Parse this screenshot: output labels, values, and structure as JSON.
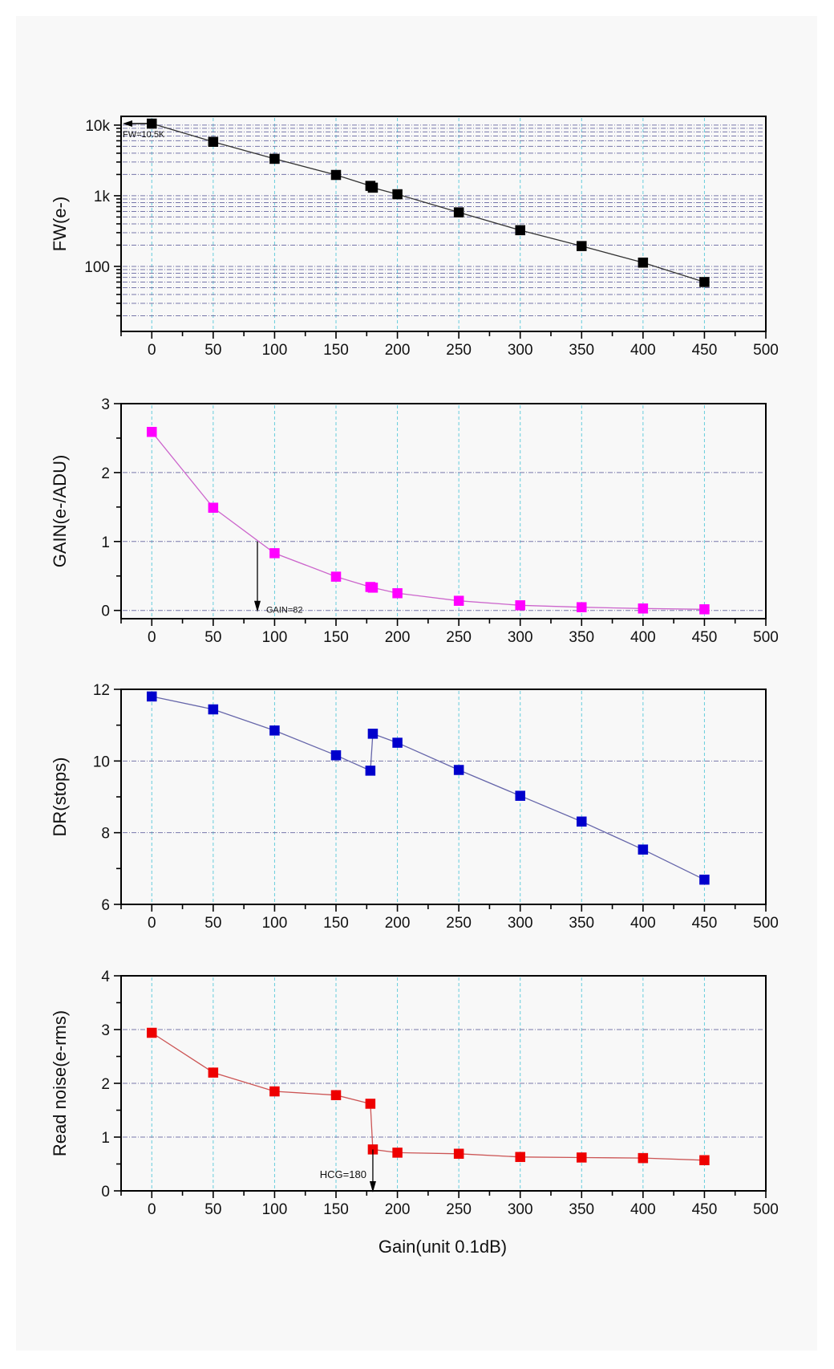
{
  "chart_data": [
    {
      "type": "line",
      "scale": "log",
      "ylabel": "FW(e-)",
      "xlim": [
        -25,
        500
      ],
      "ylim": [
        12,
        13300
      ],
      "xticks": [
        "0",
        "50",
        "100",
        "150",
        "200",
        "250",
        "300",
        "350",
        "400",
        "450",
        "500"
      ],
      "yticks": [
        {
          "v": 100,
          "label": "100"
        },
        {
          "v": 1000,
          "label": "1k"
        },
        {
          "v": 10000,
          "label": "10k"
        }
      ],
      "color": "#000000",
      "line_color": "#333333",
      "x": [
        0,
        50,
        100,
        150,
        178,
        180,
        200,
        250,
        300,
        350,
        400,
        450
      ],
      "values": [
        10500,
        5800,
        3330,
        1970,
        1380,
        1300,
        1050,
        582,
        325,
        194,
        113,
        60
      ],
      "annotation": {
        "text": "FW=10.5K",
        "x": 0,
        "y": 10500,
        "arrow": "left"
      }
    },
    {
      "type": "line",
      "scale": "linear",
      "ylabel": "GAIN(e-/ADU)",
      "xlim": [
        -25,
        500
      ],
      "ylim": [
        -0.12,
        3
      ],
      "xticks": [
        "0",
        "50",
        "100",
        "150",
        "200",
        "250",
        "300",
        "350",
        "400",
        "450",
        "500"
      ],
      "yticks": [
        {
          "v": 0,
          "label": "0"
        },
        {
          "v": 1,
          "label": "1"
        },
        {
          "v": 2,
          "label": "2"
        },
        {
          "v": 3,
          "label": "3"
        }
      ],
      "minor_yticks": [
        0.5,
        1.5,
        2.5
      ],
      "color": "#ff00ff",
      "line_color": "#cc66cc",
      "x": [
        0,
        50,
        100,
        150,
        178,
        180,
        200,
        250,
        300,
        350,
        400,
        450
      ],
      "values": [
        2.59,
        1.49,
        0.83,
        0.49,
        0.34,
        0.33,
        0.25,
        0.14,
        0.074,
        0.047,
        0.028,
        0.016
      ],
      "annotation": {
        "text": "GAIN=82",
        "x": 86,
        "y_from": 1,
        "y_to": 0,
        "arrow": "down"
      }
    },
    {
      "type": "line",
      "scale": "linear",
      "ylabel": "DR(stops)",
      "xlim": [
        -25,
        500
      ],
      "ylim": [
        6,
        12
      ],
      "xticks": [
        "0",
        "50",
        "100",
        "150",
        "200",
        "250",
        "300",
        "350",
        "400",
        "450",
        "500"
      ],
      "yticks": [
        {
          "v": 6,
          "label": "6"
        },
        {
          "v": 8,
          "label": "8"
        },
        {
          "v": 10,
          "label": "10"
        },
        {
          "v": 12,
          "label": "12"
        }
      ],
      "minor_yticks": [
        7,
        9,
        11
      ],
      "color": "#0000cc",
      "line_color": "#6666aa",
      "x": [
        0,
        50,
        100,
        150,
        178,
        180,
        200,
        250,
        300,
        350,
        400,
        450
      ],
      "values": [
        11.8,
        11.44,
        10.85,
        10.16,
        9.73,
        10.76,
        10.51,
        9.75,
        9.03,
        8.31,
        7.53,
        6.69
      ]
    },
    {
      "type": "line",
      "scale": "linear",
      "ylabel": "Read noise(e-rms)",
      "xlabel": "Gain(unit 0.1dB)",
      "xlim": [
        -25,
        500
      ],
      "ylim": [
        0,
        4
      ],
      "xticks": [
        "0",
        "50",
        "100",
        "150",
        "200",
        "250",
        "300",
        "350",
        "400",
        "450",
        "500"
      ],
      "yticks": [
        {
          "v": 0,
          "label": "0"
        },
        {
          "v": 1,
          "label": "1"
        },
        {
          "v": 2,
          "label": "2"
        },
        {
          "v": 3,
          "label": "3"
        },
        {
          "v": 4,
          "label": "4"
        }
      ],
      "minor_yticks": [
        0.5,
        1.5,
        2.5,
        3.5
      ],
      "color": "#ee0000",
      "line_color": "#cc5555",
      "x": [
        0,
        50,
        100,
        150,
        178,
        180,
        200,
        250,
        300,
        350,
        400,
        450
      ],
      "values": [
        2.94,
        2.2,
        1.85,
        1.78,
        1.62,
        0.77,
        0.71,
        0.69,
        0.63,
        0.62,
        0.61,
        0.57
      ],
      "annotation": {
        "text": "HCG=180",
        "x": 180,
        "y_from": 0.77,
        "y_to": 0,
        "arrow": "down"
      }
    }
  ]
}
